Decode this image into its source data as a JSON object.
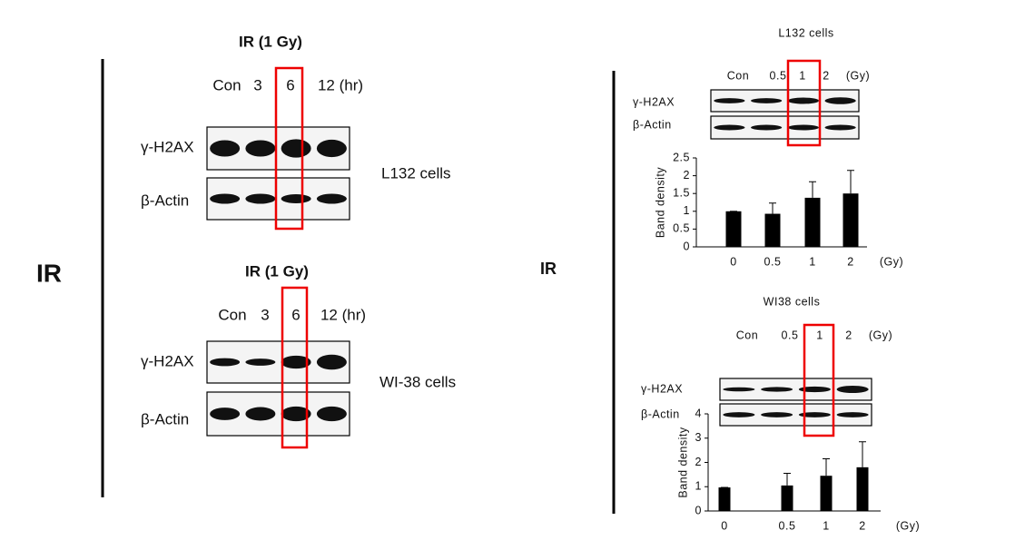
{
  "figure": {
    "left_label": "IR",
    "right_label": "IR"
  },
  "left_blots": [
    {
      "title": "IR (1 Gy)",
      "lanes": [
        "Con",
        "3",
        "6",
        "12 (hr)"
      ],
      "bands": [
        "γ-H2AX",
        "β-Actin"
      ],
      "cells": "L132 cells"
    },
    {
      "title": "IR (1 Gy)",
      "lanes": [
        "Con",
        "3",
        "6",
        "12 (hr)"
      ],
      "bands": [
        "γ-H2AX",
        "β-Actin"
      ],
      "cells": "WI-38 cells"
    }
  ],
  "right_blots": [
    {
      "title": "L132 cells",
      "lanes": [
        "Con",
        "0.5",
        "1",
        "2"
      ],
      "unit": "(Gy)",
      "bands": [
        "γ-H2AX",
        "β-Actin"
      ]
    },
    {
      "title": "WI38 cells",
      "lanes": [
        "Con",
        "0.5",
        "1",
        "2"
      ],
      "unit": "(Gy)",
      "bands": [
        "γ-H2AX",
        "β-Actin"
      ]
    }
  ],
  "chart_data": [
    {
      "type": "bar",
      "ylabel": "Band density",
      "categories": [
        "0",
        "0.5",
        "1",
        "2"
      ],
      "x_unit": "(Gy)",
      "values": [
        1.0,
        0.93,
        1.38,
        1.5
      ],
      "errors": [
        0,
        0.3,
        0.45,
        0.65
      ],
      "color": "#000000",
      "ylim": [
        0,
        2.5
      ],
      "yticks": [
        0,
        0.5,
        1,
        1.5,
        2,
        2.5
      ]
    },
    {
      "type": "bar",
      "ylabel": "Band density",
      "categories": [
        "0",
        "0.5",
        "1",
        "2"
      ],
      "x_unit": "(Gy)",
      "values": [
        0.97,
        1.05,
        1.45,
        1.8
      ],
      "errors": [
        0,
        0.5,
        0.7,
        1.05
      ],
      "color": "#000000",
      "ylim": [
        0,
        4
      ],
      "yticks": [
        0,
        1,
        2,
        3,
        4
      ]
    }
  ]
}
